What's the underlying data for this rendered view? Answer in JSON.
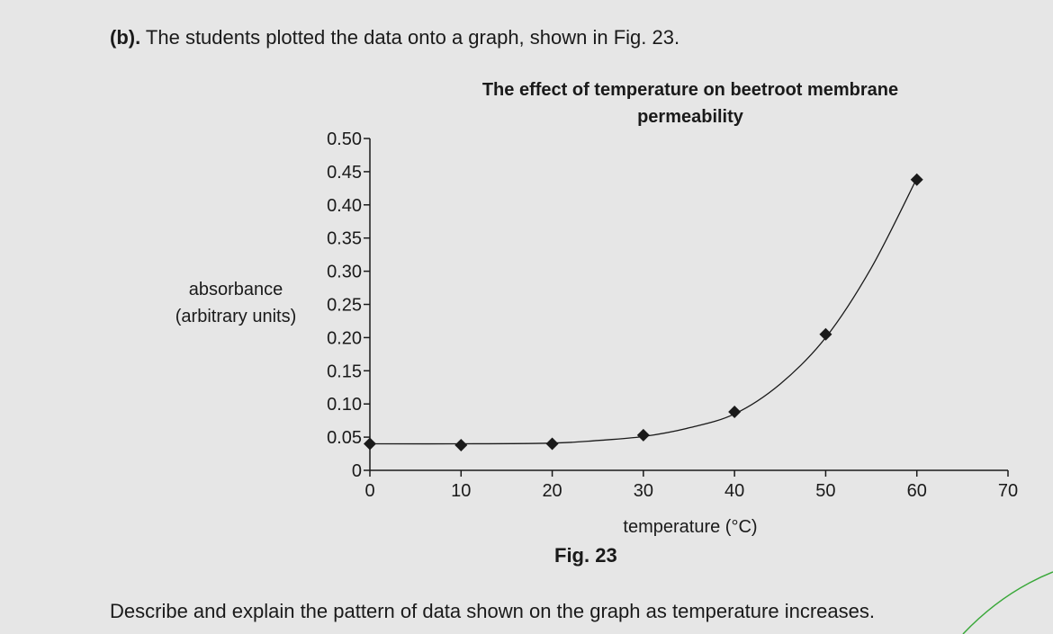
{
  "question": {
    "part": "(b).",
    "text": " The students plotted the data onto a graph, shown in Fig. 23."
  },
  "figure": {
    "caption": "Fig. 23"
  },
  "prompt": {
    "text": "Describe and explain the pattern of data shown on the graph as temperature increases."
  },
  "colors": {
    "background": "#e6e6e6",
    "ink": "#1a1a1a",
    "annotation_stroke": "#3aa83a"
  },
  "chart_data": {
    "type": "scatter",
    "title_lines": [
      "The effect of temperature on beetroot membrane",
      "permeability"
    ],
    "xlabel": "temperature (°C)",
    "ylabel_lines": [
      "absorbance",
      "(arbitrary units)"
    ],
    "xlim": [
      0,
      70
    ],
    "ylim": [
      0,
      0.5
    ],
    "xticks": [
      0,
      10,
      20,
      30,
      40,
      50,
      60,
      70
    ],
    "xtick_labels": [
      "0",
      "10",
      "20",
      "30",
      "40",
      "50",
      "60",
      "70"
    ],
    "yticks": [
      0,
      0.05,
      0.1,
      0.15,
      0.2,
      0.25,
      0.3,
      0.35,
      0.4,
      0.45,
      0.5
    ],
    "ytick_labels": [
      "0",
      "0.05",
      "0.10",
      "0.15",
      "0.20",
      "0.25",
      "0.30",
      "0.35",
      "0.40",
      "0.45",
      "0.50"
    ],
    "series": [
      {
        "name": "absorbance",
        "marker": "diamond",
        "x": [
          0,
          10,
          20,
          30,
          40,
          50,
          60
        ],
        "y": [
          0.04,
          0.038,
          0.04,
          0.053,
          0.088,
          0.205,
          0.438
        ]
      }
    ],
    "trend_curve": {
      "x": [
        0,
        10,
        20,
        25,
        30,
        35,
        40,
        45,
        50,
        55,
        60
      ],
      "y": [
        0.04,
        0.04,
        0.041,
        0.045,
        0.051,
        0.064,
        0.085,
        0.13,
        0.2,
        0.305,
        0.44
      ]
    },
    "grid": false,
    "legend": "none"
  }
}
